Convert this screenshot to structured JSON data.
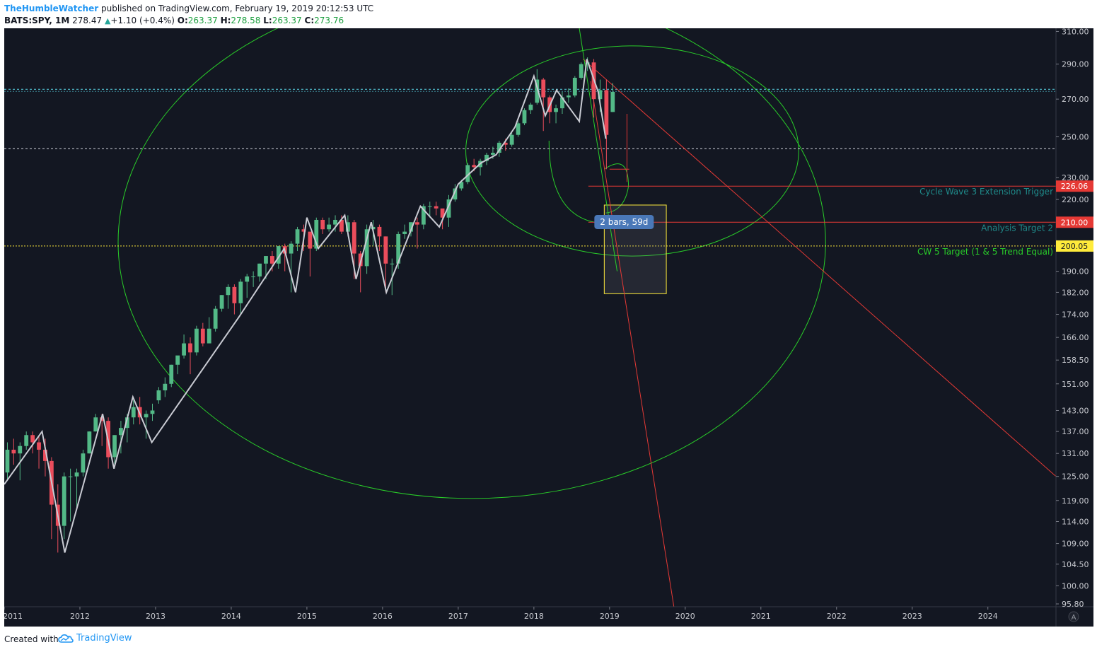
{
  "header": {
    "author": "TheHumbleWatcher",
    "published": "published on TradingView.com, February 19, 2019 20:12:53 UTC",
    "symbol": "BATS:SPY, 1M",
    "last": "278.47",
    "change_arrow": "▲",
    "change": "+1.10 (+0.4%)",
    "o_label": "O:",
    "o_value": "263.37",
    "h_label": "H:",
    "h_value": "278.58",
    "l_label": "L:",
    "l_value": "263.37",
    "c_label": "C:",
    "c_value": "273.76"
  },
  "footer": {
    "created_with": "Created with",
    "brand": "TradingView",
    "brand_icon": "tradingview-cloud-icon"
  },
  "colors": {
    "background": "#131722",
    "up": "#53b987",
    "down": "#eb4d5c",
    "zigzag": "#c9cbd3",
    "circle": "#29cc29",
    "red_line": "#e53935",
    "yellow": "#ffeb3b",
    "cyan": "#5ad6e6",
    "axis_text": "#c8cad0"
  },
  "chart_data": {
    "type": "candlestick",
    "symbol": "BATS:SPY",
    "interval": "1M",
    "scale": "log",
    "ylim": [
      95.8,
      312
    ],
    "y_ticks": [
      "310.00",
      "290.00",
      "270.00",
      "250.00",
      "230.00",
      "220.00",
      "210.00",
      "200.00",
      "190.00",
      "182.00",
      "174.00",
      "166.00",
      "158.50",
      "151.00",
      "143.00",
      "137.00",
      "131.00",
      "125.00",
      "119.00",
      "114.00",
      "109.00",
      "104.50",
      "100.00",
      "95.80"
    ],
    "x_ticks": [
      "2011",
      "2012",
      "2013",
      "2014",
      "2015",
      "2016",
      "2017",
      "2018",
      "2019",
      "2020",
      "2021",
      "2022",
      "2023",
      "2024"
    ],
    "x_range": [
      2011.0,
      2024.9
    ],
    "candles_start": 2011.0,
    "candles": [
      [
        126,
        134,
        124,
        132
      ],
      [
        132,
        135,
        128,
        131
      ],
      [
        131,
        134,
        124,
        133
      ],
      [
        133,
        137,
        132,
        136
      ],
      [
        136,
        137,
        131,
        134
      ],
      [
        134,
        136,
        127,
        132
      ],
      [
        132,
        135,
        125,
        129
      ],
      [
        129,
        130,
        110,
        118
      ],
      [
        118,
        123,
        107,
        113
      ],
      [
        113,
        126,
        110,
        125
      ],
      [
        125,
        127,
        114,
        125
      ],
      [
        125,
        127,
        117,
        126
      ],
      [
        126,
        132,
        125,
        131
      ],
      [
        131,
        137,
        131,
        137
      ],
      [
        137,
        142,
        137,
        141
      ],
      [
        141,
        142,
        133,
        140
      ],
      [
        140,
        141,
        127,
        130
      ],
      [
        130,
        136,
        128,
        136
      ],
      [
        136,
        140,
        131,
        138
      ],
      [
        138,
        142,
        134,
        141
      ],
      [
        141,
        146,
        139,
        144
      ],
      [
        144,
        147,
        139,
        141
      ],
      [
        141,
        143,
        135,
        142
      ],
      [
        142,
        145,
        140,
        143
      ],
      [
        146,
        150,
        145,
        149
      ],
      [
        149,
        153,
        147,
        151
      ],
      [
        151,
        157,
        150,
        157
      ],
      [
        157,
        159,
        154,
        160
      ],
      [
        160,
        167,
        159,
        164
      ],
      [
        164,
        166,
        154,
        161
      ],
      [
        161,
        170,
        160,
        169
      ],
      [
        169,
        171,
        163,
        164
      ],
      [
        164,
        173,
        164,
        169
      ],
      [
        169,
        177,
        168,
        176
      ],
      [
        176,
        181,
        175,
        181
      ],
      [
        181,
        185,
        176,
        184
      ],
      [
        184,
        185,
        174,
        178
      ],
      [
        178,
        187,
        174,
        186
      ],
      [
        186,
        189,
        180,
        188
      ],
      [
        188,
        190,
        184,
        188
      ],
      [
        188,
        193,
        186,
        193
      ],
      [
        193,
        196,
        187,
        196
      ],
      [
        196,
        198,
        190,
        193
      ],
      [
        193,
        200,
        191,
        200
      ],
      [
        200,
        201,
        190,
        197
      ],
      [
        197,
        202,
        182,
        201
      ],
      [
        201,
        208,
        198,
        207
      ],
      [
        207,
        209,
        198,
        206
      ],
      [
        206,
        206,
        188,
        199
      ],
      [
        199,
        212,
        198,
        211
      ],
      [
        211,
        212,
        205,
        207
      ],
      [
        207,
        212,
        206,
        209
      ],
      [
        209,
        213,
        206,
        211
      ],
      [
        211,
        213,
        205,
        206
      ],
      [
        206,
        213,
        204,
        210
      ],
      [
        210,
        211,
        187,
        197
      ],
      [
        197,
        198,
        182,
        192
      ],
      [
        192,
        209,
        189,
        207
      ],
      [
        207,
        211,
        200,
        208
      ],
      [
        208,
        209,
        198,
        204
      ],
      [
        204,
        204,
        182,
        193
      ],
      [
        193,
        195,
        181,
        193
      ],
      [
        193,
        206,
        191,
        205
      ],
      [
        205,
        209,
        203,
        206
      ],
      [
        206,
        210,
        204,
        210
      ],
      [
        210,
        212,
        199,
        209
      ],
      [
        209,
        218,
        207,
        217
      ],
      [
        217,
        219,
        212,
        217
      ],
      [
        217,
        219,
        213,
        216
      ],
      [
        216,
        215,
        207,
        212
      ],
      [
        212,
        222,
        208,
        220
      ],
      [
        220,
        227,
        219,
        225
      ],
      [
        225,
        229,
        224,
        228
      ],
      [
        228,
        237,
        227,
        236
      ],
      [
        236,
        239,
        233,
        235
      ],
      [
        235,
        239,
        231,
        238
      ],
      [
        238,
        242,
        236,
        241
      ],
      [
        241,
        245,
        239,
        242
      ],
      [
        242,
        248,
        240,
        247
      ],
      [
        247,
        249,
        243,
        246
      ],
      [
        246,
        252,
        245,
        251
      ],
      [
        251,
        258,
        250,
        257
      ],
      [
        257,
        265,
        256,
        264
      ],
      [
        264,
        268,
        262,
        267
      ],
      [
        268,
        287,
        267,
        281
      ],
      [
        281,
        282,
        253,
        271
      ],
      [
        271,
        272,
        257,
        263
      ],
      [
        263,
        267,
        257,
        265
      ],
      [
        265,
        274,
        262,
        271
      ],
      [
        271,
        276,
        268,
        272
      ],
      [
        272,
        283,
        271,
        282
      ],
      [
        282,
        291,
        281,
        290
      ],
      [
        290,
        294,
        286,
        291
      ],
      [
        291,
        293,
        260,
        270
      ],
      [
        270,
        281,
        263,
        275
      ],
      [
        275,
        281,
        234,
        251
      ],
      [
        263,
        279,
        263,
        274
      ]
    ],
    "zigzag": [
      [
        2011.0,
        123
      ],
      [
        2011.5,
        137
      ],
      [
        2011.8,
        107
      ],
      [
        2012.3,
        142
      ],
      [
        2012.45,
        127
      ],
      [
        2012.7,
        147
      ],
      [
        2012.95,
        134
      ],
      [
        2014.1,
        173
      ],
      [
        2014.7,
        199
      ],
      [
        2014.85,
        182
      ],
      [
        2015.0,
        212
      ],
      [
        2015.15,
        199
      ],
      [
        2015.5,
        213
      ],
      [
        2015.65,
        187
      ],
      [
        2015.85,
        210
      ],
      [
        2016.05,
        182
      ],
      [
        2016.5,
        217
      ],
      [
        2016.75,
        208
      ],
      [
        2017.0,
        227
      ],
      [
        2017.3,
        237
      ],
      [
        2017.5,
        241
      ],
      [
        2017.75,
        255
      ],
      [
        2018.0,
        283
      ],
      [
        2018.15,
        261
      ],
      [
        2018.3,
        275
      ],
      [
        2018.6,
        258
      ],
      [
        2018.7,
        293
      ],
      [
        2018.85,
        274
      ],
      [
        2018.95,
        249
      ]
    ],
    "horizontal_lines": [
      {
        "price": 226.06,
        "label": "Cycle Wave 3 Extension Trigger",
        "tag": "226.06",
        "color": "#e53935"
      },
      {
        "price": 210.0,
        "label": "Analysis Target 2",
        "tag": "210.00",
        "color": "#e53935"
      },
      {
        "price": 200.05,
        "label": "CW 5 Target (1 & 5 Trend Equal)",
        "tag": "200.05",
        "color": "#ffeb3b"
      },
      {
        "price": 275.5,
        "label": "",
        "tag": "",
        "color": "#5ad6e6"
      },
      {
        "price": 244.0,
        "label": "",
        "tag": "",
        "color": "#d1d4dc"
      }
    ],
    "measure_box": {
      "label": "2 bars, 59d",
      "x0": 2018.93,
      "x1": 2019.75,
      "y0": 217.5,
      "y1": 181.5
    },
    "trendlines": [
      {
        "from": [
          2018.65,
          293
        ],
        "to": [
          2024.9,
          125
        ],
        "color": "#e53935"
      },
      {
        "from": [
          2018.75,
          280
        ],
        "to": [
          2019.85,
          95.8
        ],
        "color": "#e53935"
      },
      {
        "from": [
          2018.6,
          312
        ],
        "to": [
          2019.1,
          190
        ],
        "color": "#29cc29"
      }
    ]
  }
}
